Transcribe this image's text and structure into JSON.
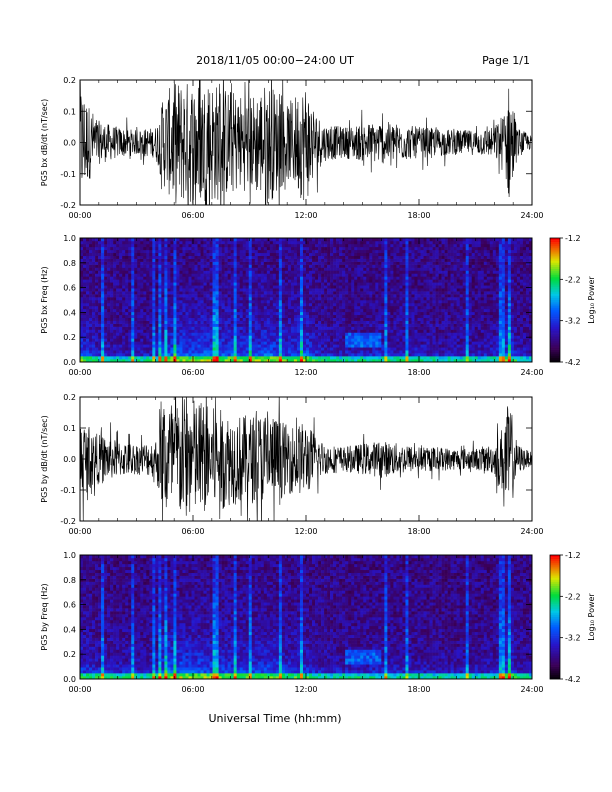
{
  "header": {
    "title": "2018/11/05   00:00−24:00 UT",
    "page": "Page 1/1"
  },
  "xlabel": "Universal Time (hh:mm)",
  "xticks": [
    "00:00",
    "06:00",
    "12:00",
    "18:00",
    "24:00"
  ],
  "colorbar": {
    "label": "Log₁₀ Power",
    "ticks": [
      "-1.2",
      "-2.2",
      "-3.2",
      "-4.2"
    ]
  },
  "chart_data": [
    {
      "type": "line",
      "ylabel": "PG5 bx dB/dt (nT/sec)",
      "x_range_hours": [
        0,
        24
      ],
      "ylim": [
        -0.2,
        0.2
      ],
      "yticks": [
        "0.2",
        "0.1",
        "0.0",
        "-0.1",
        "-0.2"
      ],
      "envelope": {
        "hours": [
          0,
          0.5,
          1,
          2,
          3,
          4,
          4.5,
          5,
          6,
          7,
          8,
          9,
          10,
          11,
          12,
          12.5,
          13,
          14,
          15,
          16,
          17,
          18,
          19,
          20,
          21,
          22,
          22.5,
          22.8,
          23.2,
          24
        ],
        "amplitude": [
          0.2,
          0.12,
          0.07,
          0.05,
          0.04,
          0.05,
          0.15,
          0.2,
          0.2,
          0.2,
          0.17,
          0.15,
          0.2,
          0.12,
          0.2,
          0.1,
          0.06,
          0.05,
          0.06,
          0.07,
          0.06,
          0.05,
          0.045,
          0.04,
          0.04,
          0.05,
          0.1,
          0.2,
          0.05,
          0.02
        ]
      }
    },
    {
      "type": "heatmap",
      "ylabel": "PG5 bx Freq (Hz)",
      "x_range_hours": [
        0,
        24
      ],
      "ylim": [
        0,
        1.0
      ],
      "yticks": [
        "1.0",
        "0.8",
        "0.6",
        "0.4",
        "0.2",
        "0.0"
      ],
      "zlim": [
        -4.2,
        -1.2
      ],
      "z_label": "Log10 Power"
    },
    {
      "type": "line",
      "ylabel": "PG5 by dB/dt (nT/sec)",
      "x_range_hours": [
        0,
        24
      ],
      "ylim": [
        -0.2,
        0.2
      ],
      "yticks": [
        "0.2",
        "0.1",
        "0.0",
        "-0.1",
        "-0.2"
      ],
      "envelope": {
        "hours": [
          0,
          0.5,
          1,
          2,
          3,
          4,
          4.5,
          5,
          6,
          7,
          8,
          9,
          10,
          11,
          12,
          12.5,
          13,
          14,
          15,
          16,
          17,
          18,
          19,
          20,
          21,
          22,
          22.5,
          22.8,
          23.2,
          24
        ],
        "amplitude": [
          0.13,
          0.1,
          0.08,
          0.06,
          0.05,
          0.06,
          0.2,
          0.2,
          0.2,
          0.17,
          0.15,
          0.14,
          0.16,
          0.11,
          0.12,
          0.08,
          0.05,
          0.04,
          0.05,
          0.06,
          0.05,
          0.04,
          0.04,
          0.035,
          0.035,
          0.05,
          0.12,
          0.2,
          0.05,
          0.02
        ]
      }
    },
    {
      "type": "heatmap",
      "ylabel": "PG5 by Freq (Hz)",
      "x_range_hours": [
        0,
        24
      ],
      "ylim": [
        0,
        1.0
      ],
      "yticks": [
        "1.0",
        "0.8",
        "0.6",
        "0.4",
        "0.2",
        "0.0"
      ],
      "zlim": [
        -4.2,
        -1.2
      ],
      "z_label": "Log10 Power"
    }
  ]
}
